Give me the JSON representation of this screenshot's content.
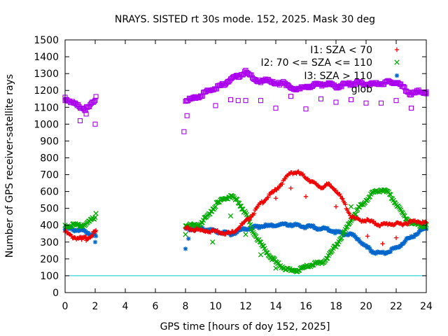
{
  "chart_data": {
    "type": "scatter",
    "title": "NRAYS. SISTED rt 30s mode. 152, 2025. Mask 30 deg",
    "xlabel": "GPS time [hours of doy 152, 2025]",
    "ylabel": "Number of GPS receiver-satellite rays",
    "xlim": [
      0,
      24
    ],
    "ylim": [
      0,
      1500
    ],
    "x_ticks": [
      0,
      2,
      4,
      6,
      8,
      10,
      12,
      14,
      16,
      18,
      20,
      22,
      24
    ],
    "y_ticks": [
      0,
      100,
      200,
      300,
      400,
      500,
      600,
      700,
      800,
      900,
      1000,
      1100,
      1200,
      1300,
      1400,
      1500
    ],
    "legend_position": "top-right",
    "reference_line": {
      "y": 100,
      "color": "#00cccc"
    },
    "series": [
      {
        "name": "I1: SZA < 70",
        "marker": "+",
        "color": "#ee0000",
        "x": [
          0,
          0.5,
          1.0,
          1.5,
          2.0,
          2.1,
          8,
          9,
          10,
          11,
          12,
          12.5,
          13,
          13.5,
          14,
          14.5,
          15,
          15.5,
          16,
          16.5,
          17,
          17.5,
          18,
          18.5,
          19,
          19.5,
          20,
          20.5,
          21,
          21.5,
          22,
          22.5,
          23,
          23.5,
          24
        ],
        "values": [
          360,
          330,
          320,
          325,
          360,
          370,
          380,
          370,
          365,
          350,
          420,
          470,
          530,
          570,
          610,
          660,
          715,
          710,
          685,
          650,
          625,
          640,
          610,
          540,
          450,
          430,
          430,
          415,
          400,
          410,
          405,
          410,
          420,
          425,
          410
        ],
        "outliers_x": [
          0.3,
          1.1,
          1.4,
          2.0,
          14.0,
          15.0,
          16.0,
          18.0,
          20.1,
          21.1,
          22.0
        ],
        "outliers_y": [
          345,
          315,
          310,
          360,
          560,
          620,
          570,
          510,
          335,
          290,
          325
        ]
      },
      {
        "name": "I2: 70 <= SZA <= 110",
        "marker": "x",
        "color": "#00aa00",
        "x": [
          0,
          0.5,
          1.0,
          1.5,
          2.0,
          2.1,
          8,
          8.5,
          9,
          9.5,
          10,
          10.5,
          11,
          11.5,
          12,
          12.5,
          13,
          13.5,
          14,
          14.5,
          15,
          15.5,
          16,
          16.5,
          17,
          17.5,
          18,
          18.5,
          19,
          19.5,
          20,
          20.5,
          21,
          21.5,
          22,
          22.5,
          23,
          23.5,
          24
        ],
        "values": [
          395,
          400,
          395,
          410,
          450,
          490,
          400,
          400,
          410,
          460,
          520,
          555,
          570,
          540,
          470,
          360,
          290,
          230,
          180,
          150,
          130,
          135,
          150,
          170,
          175,
          215,
          280,
          350,
          430,
          500,
          550,
          595,
          610,
          590,
          525,
          460,
          410,
          400,
          395
        ],
        "outliers_x": [
          8.0,
          9.8,
          11.0,
          12.0,
          13.0,
          14.0,
          19.0
        ],
        "outliers_y": [
          345,
          300,
          455,
          345,
          225,
          145,
          510
        ]
      },
      {
        "name": "I3: SZA > 110",
        "marker": "*",
        "color": "#0066cc",
        "x": [
          0,
          0.5,
          1.0,
          1.5,
          2.0,
          2.1,
          8,
          8.5,
          9,
          9.5,
          10,
          10.5,
          11,
          11.5,
          12,
          12.5,
          13,
          13.5,
          14,
          14.5,
          15,
          15.5,
          16,
          16.5,
          17,
          17.5,
          18,
          18.5,
          19,
          19.5,
          20,
          20.5,
          21,
          21.5,
          22,
          22.5,
          23,
          23.5,
          24
        ],
        "values": [
          385,
          375,
          370,
          355,
          340,
          320,
          375,
          380,
          380,
          375,
          360,
          355,
          350,
          365,
          380,
          385,
          395,
          395,
          400,
          405,
          405,
          395,
          390,
          390,
          380,
          375,
          360,
          350,
          345,
          320,
          270,
          240,
          230,
          245,
          265,
          300,
          330,
          360,
          385
        ],
        "outliers_x": [
          0.0,
          2.0,
          8.0,
          8.2
        ],
        "outliers_y": [
          375,
          300,
          260,
          320
        ]
      },
      {
        "name": "glob",
        "marker": "square",
        "color": "#aa00ee",
        "x": [
          0,
          0.3,
          0.6,
          1.0,
          1.3,
          1.6,
          2.0,
          2.1,
          8,
          8.5,
          9,
          9.5,
          10,
          10.5,
          11,
          11.5,
          12,
          12.5,
          13,
          13.5,
          14,
          14.5,
          15,
          15.5,
          16,
          16.5,
          17,
          17.5,
          18,
          18.5,
          19,
          19.5,
          20,
          20.5,
          21,
          21.5,
          22,
          22.5,
          23,
          23.5,
          24
        ],
        "values": [
          1150,
          1140,
          1120,
          1100,
          1090,
          1100,
          1150,
          1190,
          1140,
          1150,
          1170,
          1195,
          1215,
          1235,
          1265,
          1285,
          1310,
          1275,
          1245,
          1270,
          1230,
          1255,
          1205,
          1215,
          1215,
          1235,
          1235,
          1240,
          1220,
          1235,
          1240,
          1245,
          1240,
          1235,
          1240,
          1250,
          1250,
          1215,
          1175,
          1195,
          1185
        ],
        "outliers_x": [
          0.0,
          1.0,
          1.4,
          2.0,
          7.9,
          8.1,
          10.0,
          11.0,
          11.5,
          12.0,
          13.0,
          14.0,
          15.0,
          16.0,
          17.0,
          18.0,
          19.0,
          20.0,
          21.0,
          22.0,
          23.0,
          24.0
        ],
        "outliers_y": [
          1140,
          1020,
          1060,
          1000,
          955,
          1050,
          1110,
          1145,
          1140,
          1140,
          1140,
          1095,
          1165,
          1090,
          1150,
          1130,
          1145,
          1125,
          1125,
          1140,
          1095,
          1180
        ]
      }
    ]
  }
}
